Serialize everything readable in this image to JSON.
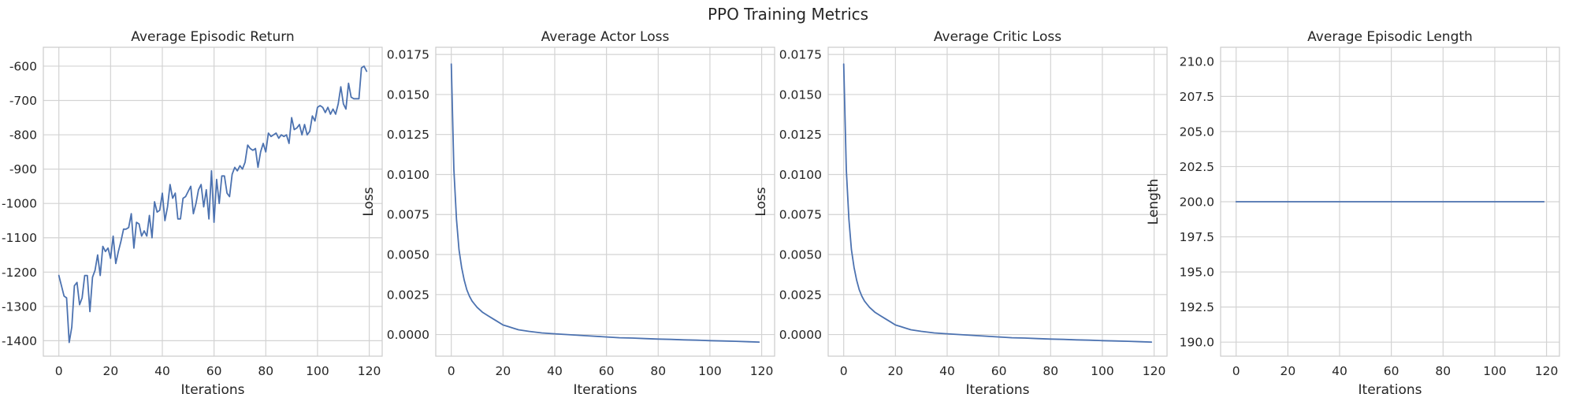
{
  "figure": {
    "title": "PPO Training Metrics",
    "line_color": "#4c72b0"
  },
  "chart_data": [
    {
      "type": "line",
      "title": "Average Episodic Return",
      "xlabel": "Iterations",
      "ylabel": "",
      "xlim": [
        -6,
        125
      ],
      "ylim": [
        -1445,
        -545
      ],
      "xticks": [
        0,
        20,
        40,
        60,
        80,
        100,
        120
      ],
      "yticks": [
        -1400,
        -1300,
        -1200,
        -1100,
        -1000,
        -900,
        -800,
        -700,
        -600
      ],
      "ytick_labels": [
        "-1400",
        "-1300",
        "-1200",
        "-1100",
        "-1000",
        "-900",
        "-800",
        "-700",
        "-600"
      ],
      "grid": true,
      "x": [
        0,
        1,
        2,
        3,
        4,
        5,
        6,
        7,
        8,
        9,
        10,
        11,
        12,
        13,
        14,
        15,
        16,
        17,
        18,
        19,
        20,
        21,
        22,
        23,
        24,
        25,
        26,
        27,
        28,
        29,
        30,
        31,
        32,
        33,
        34,
        35,
        36,
        37,
        38,
        39,
        40,
        41,
        42,
        43,
        44,
        45,
        46,
        47,
        48,
        49,
        50,
        51,
        52,
        53,
        54,
        55,
        56,
        57,
        58,
        59,
        60,
        61,
        62,
        63,
        64,
        65,
        66,
        67,
        68,
        69,
        70,
        71,
        72,
        73,
        74,
        75,
        76,
        77,
        78,
        79,
        80,
        81,
        82,
        83,
        84,
        85,
        86,
        87,
        88,
        89,
        90,
        91,
        92,
        93,
        94,
        95,
        96,
        97,
        98,
        99,
        100,
        101,
        102,
        103,
        104,
        105,
        106,
        107,
        108,
        109,
        110,
        111,
        112,
        113,
        114,
        115,
        116,
        117,
        118,
        119
      ],
      "series": [
        {
          "values": [
            -1210,
            -1240,
            -1270,
            -1275,
            -1405,
            -1360,
            -1240,
            -1230,
            -1295,
            -1275,
            -1210,
            -1210,
            -1315,
            -1215,
            -1195,
            -1150,
            -1210,
            -1125,
            -1140,
            -1130,
            -1160,
            -1095,
            -1175,
            -1140,
            -1110,
            -1075,
            -1075,
            -1070,
            -1030,
            -1130,
            -1055,
            -1060,
            -1095,
            -1080,
            -1095,
            -1035,
            -1100,
            -995,
            -1025,
            -1020,
            -970,
            -1050,
            -1010,
            -945,
            -985,
            -970,
            -1045,
            -1045,
            -985,
            -980,
            -965,
            -950,
            -1030,
            -1000,
            -960,
            -945,
            -1010,
            -960,
            -1045,
            -905,
            -1055,
            -930,
            -1000,
            -920,
            -920,
            -970,
            -980,
            -915,
            -895,
            -905,
            -890,
            -900,
            -880,
            -830,
            -840,
            -845,
            -840,
            -895,
            -850,
            -825,
            -850,
            -795,
            -805,
            -800,
            -795,
            -810,
            -800,
            -805,
            -800,
            -825,
            -750,
            -785,
            -780,
            -770,
            -800,
            -770,
            -800,
            -790,
            -745,
            -760,
            -720,
            -715,
            -720,
            -735,
            -720,
            -740,
            -725,
            -740,
            -710,
            -660,
            -710,
            -725,
            -650,
            -690,
            -695,
            -695,
            -695,
            -605,
            -600,
            -615
          ]
        }
      ]
    },
    {
      "type": "line",
      "title": "Average Actor Loss",
      "xlabel": "Iterations",
      "ylabel": "Loss",
      "xlim": [
        -6,
        125
      ],
      "ylim": [
        -0.00135,
        0.01795
      ],
      "xticks": [
        0,
        20,
        40,
        60,
        80,
        100,
        120
      ],
      "yticks": [
        0,
        0.0025,
        0.005,
        0.0075,
        0.01,
        0.0125,
        0.015,
        0.0175
      ],
      "ytick_labels": [
        "0.0000",
        "0.0025",
        "0.0050",
        "0.0075",
        "0.0100",
        "0.0125",
        "0.0150",
        "0.0175"
      ],
      "grid": true,
      "x": [
        0,
        1,
        2,
        3,
        4,
        5,
        6,
        7,
        8,
        9,
        10,
        12,
        14,
        16,
        18,
        20,
        22,
        24,
        26,
        28,
        30,
        35,
        40,
        45,
        50,
        55,
        60,
        65,
        70,
        75,
        80,
        85,
        90,
        95,
        100,
        105,
        110,
        115,
        119
      ],
      "series": [
        {
          "values": [
            0.0169,
            0.0103,
            0.0072,
            0.0053,
            0.0042,
            0.0034,
            0.0028,
            0.0024,
            0.0021,
            0.0019,
            0.0017,
            0.0014,
            0.0012,
            0.001,
            0.0008,
            0.0006,
            0.0005,
            0.0004,
            0.0003,
            0.00025,
            0.0002,
            0.0001,
            5e-05,
            0.0,
            -5e-05,
            -0.0001,
            -0.00015,
            -0.0002,
            -0.00022,
            -0.00025,
            -0.00028,
            -0.0003,
            -0.00033,
            -0.00035,
            -0.00038,
            -0.0004,
            -0.00042,
            -0.00045,
            -0.00047
          ]
        }
      ]
    },
    {
      "type": "line",
      "title": "Average Critic Loss",
      "xlabel": "Iterations",
      "ylabel": "Loss",
      "xlim": [
        -6,
        125
      ],
      "ylim": [
        -0.00135,
        0.01795
      ],
      "xticks": [
        0,
        20,
        40,
        60,
        80,
        100,
        120
      ],
      "yticks": [
        0,
        0.0025,
        0.005,
        0.0075,
        0.01,
        0.0125,
        0.015,
        0.0175
      ],
      "ytick_labels": [
        "0.0000",
        "0.0025",
        "0.0050",
        "0.0075",
        "0.0100",
        "0.0125",
        "0.0150",
        "0.0175"
      ],
      "grid": true,
      "x": [
        0,
        1,
        2,
        3,
        4,
        5,
        6,
        7,
        8,
        9,
        10,
        12,
        14,
        16,
        18,
        20,
        22,
        24,
        26,
        28,
        30,
        35,
        40,
        45,
        50,
        55,
        60,
        65,
        70,
        75,
        80,
        85,
        90,
        95,
        100,
        105,
        110,
        115,
        119
      ],
      "series": [
        {
          "values": [
            0.0169,
            0.0103,
            0.0072,
            0.0053,
            0.0042,
            0.0034,
            0.0028,
            0.0024,
            0.0021,
            0.0019,
            0.0017,
            0.0014,
            0.0012,
            0.001,
            0.0008,
            0.0006,
            0.0005,
            0.0004,
            0.0003,
            0.00025,
            0.0002,
            0.0001,
            5e-05,
            0.0,
            -5e-05,
            -0.0001,
            -0.00015,
            -0.0002,
            -0.00022,
            -0.00025,
            -0.00028,
            -0.0003,
            -0.00033,
            -0.00035,
            -0.00038,
            -0.0004,
            -0.00042,
            -0.00045,
            -0.00047
          ]
        }
      ]
    },
    {
      "type": "line",
      "title": "Average Episodic Length",
      "xlabel": "Iterations",
      "ylabel": "Length",
      "xlim": [
        -6,
        125
      ],
      "ylim": [
        189,
        211
      ],
      "xticks": [
        0,
        20,
        40,
        60,
        80,
        100,
        120
      ],
      "yticks": [
        190,
        192.5,
        195,
        197.5,
        200,
        202.5,
        205,
        207.5,
        210
      ],
      "ytick_labels": [
        "190.0",
        "192.5",
        "195.0",
        "197.5",
        "200.0",
        "202.5",
        "205.0",
        "207.5",
        "210.0"
      ],
      "grid": true,
      "x": [
        0,
        119
      ],
      "series": [
        {
          "values": [
            200,
            200
          ]
        }
      ]
    }
  ]
}
